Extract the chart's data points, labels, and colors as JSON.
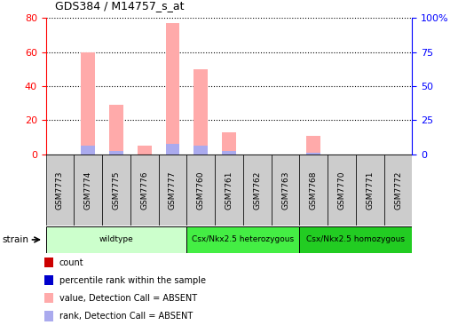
{
  "title": "GDS384 / M14757_s_at",
  "samples": [
    "GSM7773",
    "GSM7774",
    "GSM7775",
    "GSM7776",
    "GSM7777",
    "GSM7760",
    "GSM7761",
    "GSM7762",
    "GSM7763",
    "GSM7768",
    "GSM7770",
    "GSM7771",
    "GSM7772"
  ],
  "value_absent": [
    0,
    60,
    29,
    5,
    77,
    50,
    13,
    0,
    0,
    11,
    0,
    0,
    0
  ],
  "rank_absent": [
    0,
    5,
    2,
    0,
    6,
    5,
    2,
    0,
    0,
    1,
    0,
    0,
    0
  ],
  "strain_groups": [
    {
      "label": "wildtype",
      "start": 0,
      "end": 5,
      "color": "#ccffcc"
    },
    {
      "label": "Csx/Nkx2.5 heterozygous",
      "start": 5,
      "end": 9,
      "color": "#44ee44"
    },
    {
      "label": "Csx/Nkx2.5 homozygous",
      "start": 9,
      "end": 13,
      "color": "#22cc22"
    }
  ],
  "left_yticks": [
    0,
    20,
    40,
    60,
    80
  ],
  "right_yticks": [
    0,
    25,
    50,
    75,
    100
  ],
  "left_ylim": [
    0,
    80
  ],
  "right_ylim": [
    0,
    100
  ],
  "color_value_absent": "#ffaaaa",
  "color_rank_absent": "#aaaaee",
  "color_count": "#cc0000",
  "color_percentile": "#0000cc",
  "bar_width": 0.5,
  "legend_items": [
    {
      "label": "count",
      "color": "#cc0000"
    },
    {
      "label": "percentile rank within the sample",
      "color": "#0000cc"
    },
    {
      "label": "value, Detection Call = ABSENT",
      "color": "#ffaaaa"
    },
    {
      "label": "rank, Detection Call = ABSENT",
      "color": "#aaaaee"
    }
  ],
  "fig_width": 5.16,
  "fig_height": 3.66,
  "dpi": 100
}
